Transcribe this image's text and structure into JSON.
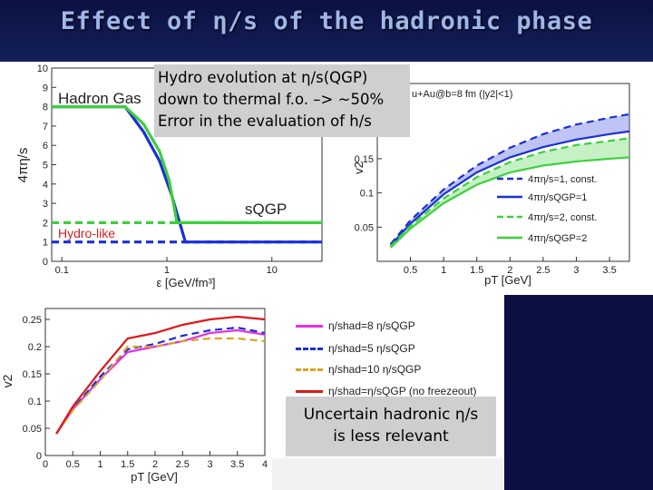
{
  "slide": {
    "title": "Effect of η/s of the hadronic phase",
    "note_hydro_lines": [
      "Hydro evolution at η/s(QGP)",
      "down to thermal f.o. –> ~50%",
      "Error in the evaluation of h/s"
    ],
    "note_hadronic_lines": [
      "Uncertain hadronic η/s",
      "is less relevant"
    ]
  },
  "chart_data": [
    {
      "type": "line",
      "xlabel": "ε [GeV/fm³]",
      "ylabel": "4πη/s",
      "xscale": "log",
      "xlim": [
        0.08,
        30
      ],
      "ylim": [
        0,
        10
      ],
      "x_ticks": [
        "0.1",
        "1",
        "10"
      ],
      "y_ticks": [
        "0",
        "1",
        "2",
        "3",
        "4",
        "5",
        "6",
        "7",
        "8",
        "9",
        "10"
      ],
      "annotations": [
        "Hadron Gas",
        "sQGP",
        "Hydro-like"
      ],
      "series": [
        {
          "color": "#1a2fd6",
          "style": "solid",
          "x": [
            0.08,
            0.4,
            0.6,
            0.85,
            1.1,
            1.5,
            30
          ],
          "y": [
            8,
            8,
            6.7,
            5.2,
            3.5,
            1,
            1
          ]
        },
        {
          "color": "#3ccf3c",
          "style": "solid",
          "x": [
            0.08,
            0.4,
            0.6,
            0.85,
            1.05,
            1.25,
            30
          ],
          "y": [
            8,
            8,
            7.1,
            5.7,
            4.2,
            2,
            2
          ]
        },
        {
          "color": "#3ccf3c",
          "style": "dashed",
          "x": [
            0.08,
            30
          ],
          "y": [
            2,
            2
          ]
        },
        {
          "color": "#1a2fd6",
          "style": "dashed",
          "x": [
            0.08,
            30
          ],
          "y": [
            1,
            1
          ]
        }
      ]
    },
    {
      "type": "line",
      "xlabel": "pT [GeV]",
      "ylabel": "v2",
      "header_text": "u+Au@b=8 fm (|y2|<1)",
      "xlim": [
        0,
        3.8
      ],
      "ylim": [
        0,
        0.26
      ],
      "x_ticks": [
        "0.5",
        "1",
        "1.5",
        "2",
        "2.5",
        "3",
        "3.5"
      ],
      "y_ticks": [
        "0.05",
        "0.1",
        "0.15",
        "0.2"
      ],
      "legend": [
        "4πη/s=1, const.",
        "4πη/sQGP=1",
        "4πη/s=2, const.",
        "4πη/sQGP=2"
      ],
      "series": [
        {
          "color": "#1a2fd6",
          "style": "dashed",
          "x": [
            0.2,
            0.5,
            1,
            1.5,
            2,
            2.5,
            3,
            3.5,
            3.8
          ],
          "y": [
            0.025,
            0.06,
            0.105,
            0.14,
            0.166,
            0.186,
            0.2,
            0.21,
            0.215
          ]
        },
        {
          "color": "#1a2fd6",
          "style": "solid",
          "x": [
            0.2,
            0.5,
            1,
            1.5,
            2,
            2.5,
            3,
            3.5,
            3.8
          ],
          "y": [
            0.023,
            0.055,
            0.098,
            0.13,
            0.152,
            0.167,
            0.178,
            0.186,
            0.19
          ]
        },
        {
          "color": "#3ccf3c",
          "style": "dashed",
          "x": [
            0.2,
            0.5,
            1,
            1.5,
            2,
            2.5,
            3,
            3.5,
            3.8
          ],
          "y": [
            0.022,
            0.052,
            0.092,
            0.123,
            0.145,
            0.16,
            0.17,
            0.176,
            0.18
          ]
        },
        {
          "color": "#3ccf3c",
          "style": "solid",
          "x": [
            0.2,
            0.5,
            1,
            1.5,
            2,
            2.5,
            3,
            3.5,
            3.8
          ],
          "y": [
            0.02,
            0.048,
            0.085,
            0.112,
            0.13,
            0.14,
            0.146,
            0.15,
            0.152
          ]
        }
      ]
    },
    {
      "type": "line",
      "xlabel": "pT [GeV]",
      "ylabel": "v2",
      "xlim": [
        0,
        4
      ],
      "ylim": [
        0,
        0.27
      ],
      "x_ticks": [
        "0",
        "0.5",
        "1",
        "1.5",
        "2",
        "2.5",
        "3",
        "3.5",
        "4"
      ],
      "y_ticks": [
        "0",
        "0.05",
        "0.1",
        "0.15",
        "0.2",
        "0.25"
      ],
      "legend": [
        "η/shad=8 η/sQGP",
        "η/shad=5 η/sQGP",
        "η/shad=10 η/sQGP",
        "η/shad=η/sQGP (no freezeout)"
      ],
      "series": [
        {
          "color": "#e62ee6",
          "style": "solid",
          "x": [
            0.2,
            0.5,
            1,
            1.5,
            2,
            2.5,
            3,
            3.5,
            4
          ],
          "y": [
            0.04,
            0.085,
            0.14,
            0.19,
            0.2,
            0.21,
            0.225,
            0.23,
            0.222
          ]
        },
        {
          "color": "#1a2fd6",
          "style": "dashed",
          "x": [
            0.2,
            0.5,
            1,
            1.5,
            2,
            2.5,
            3,
            3.5,
            4
          ],
          "y": [
            0.04,
            0.085,
            0.145,
            0.195,
            0.205,
            0.22,
            0.23,
            0.235,
            0.225
          ]
        },
        {
          "color": "#d9a520",
          "style": "dashed",
          "x": [
            0.2,
            0.5,
            1,
            1.5,
            2,
            2.5,
            3,
            3.5,
            4
          ],
          "y": [
            0.04,
            0.083,
            0.138,
            0.2,
            0.2,
            0.21,
            0.215,
            0.215,
            0.21
          ]
        },
        {
          "color": "#e01818",
          "style": "solid",
          "x": [
            0.2,
            0.5,
            1,
            1.5,
            2,
            2.5,
            3,
            3.5,
            4
          ],
          "y": [
            0.04,
            0.09,
            0.155,
            0.215,
            0.225,
            0.24,
            0.25,
            0.255,
            0.25
          ]
        }
      ]
    }
  ]
}
